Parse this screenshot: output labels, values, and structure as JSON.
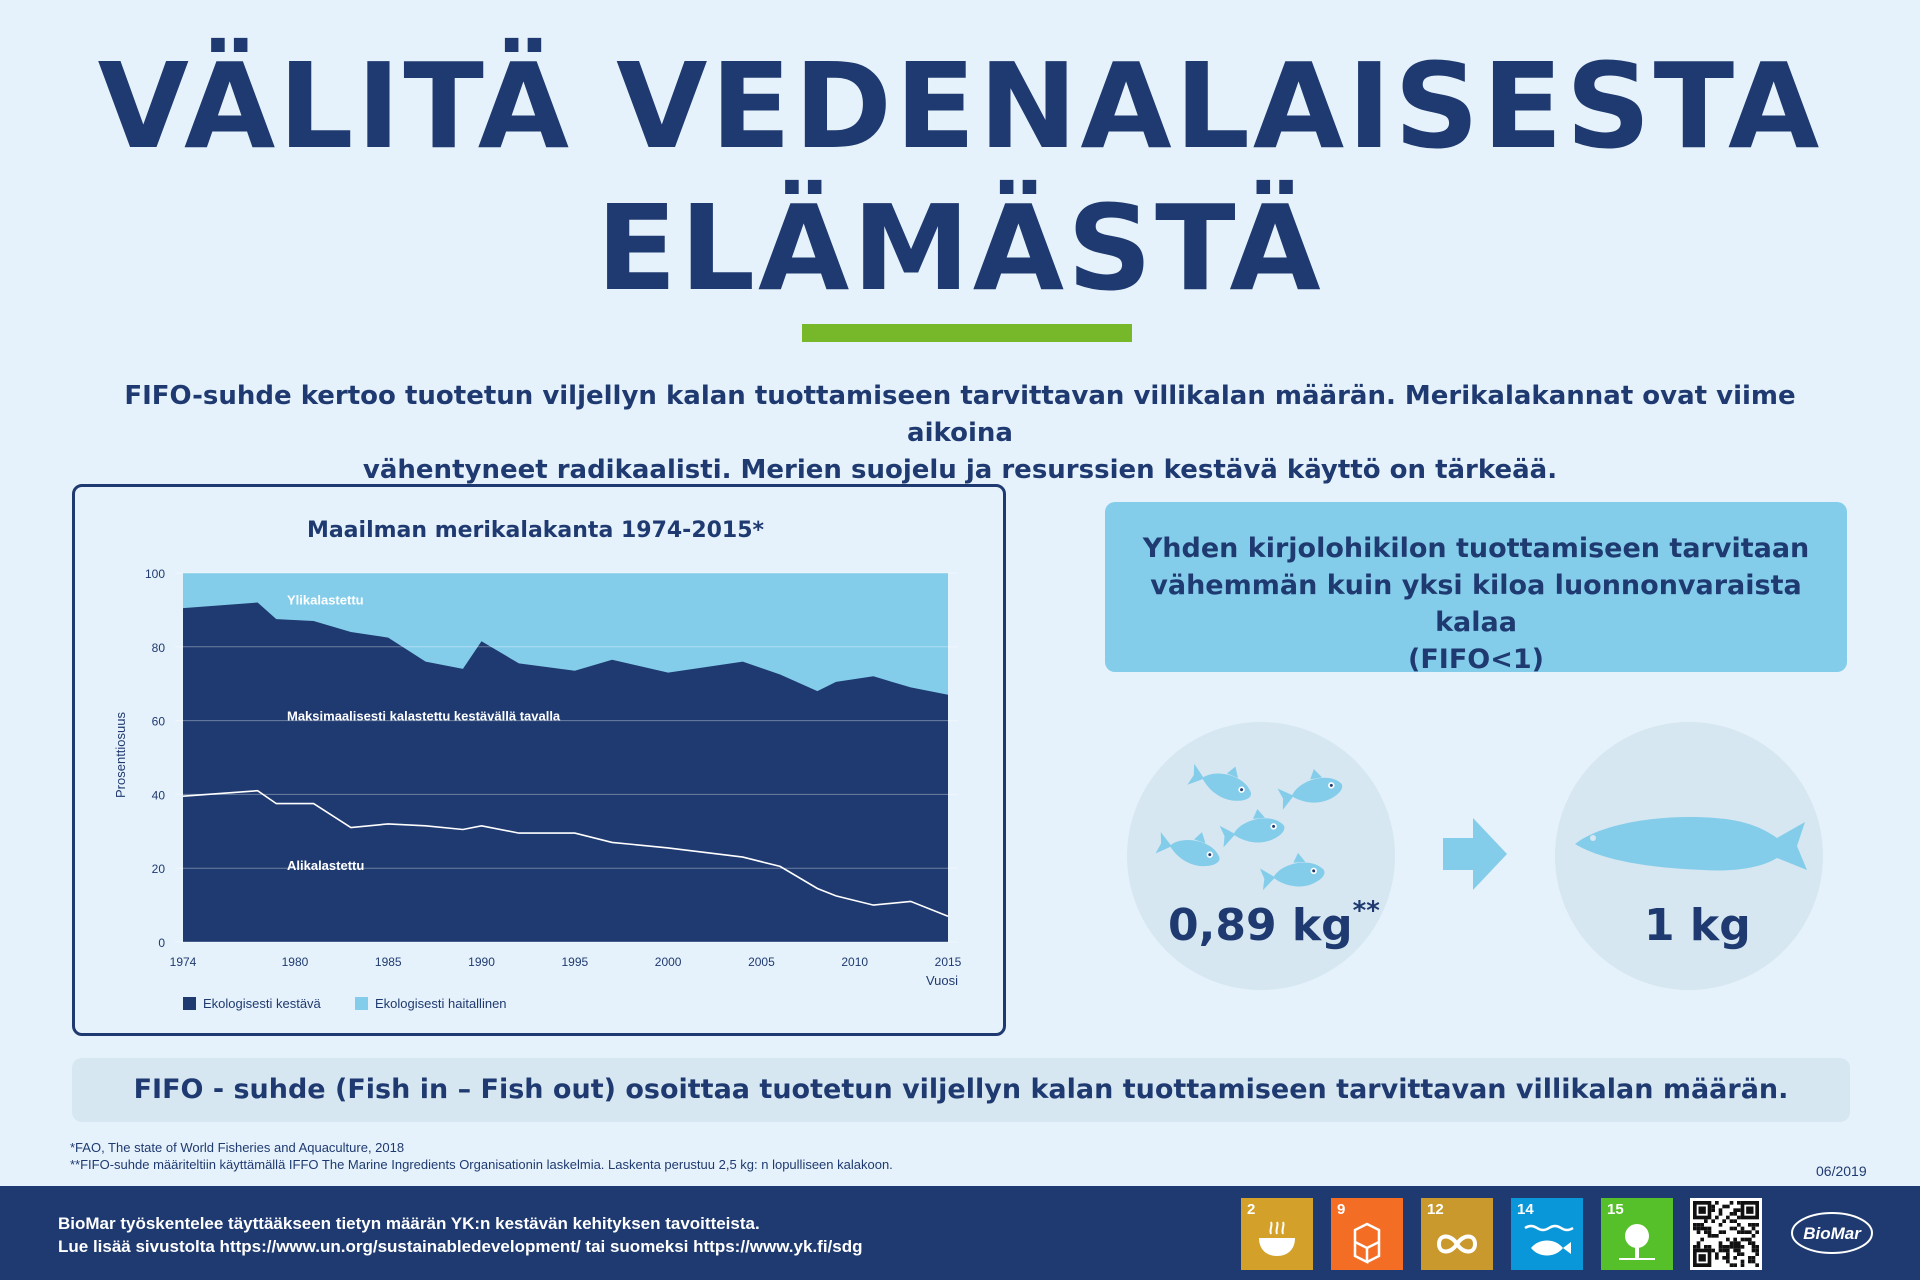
{
  "title_line1": "VÄLITÄ VEDENALAISESTA",
  "title_line2": "ELÄMÄSTÄ",
  "intro_line1": "FIFO-suhde kertoo tuotetun viljellyn kalan tuottamiseen tarvittavan villikalan määrän. Merikalakannat ovat viime aikoina",
  "intro_line2": "vähentyneet radikaalisti. Merien suojelu ja resurssien kestävä käyttö on tärkeää.",
  "info_box": {
    "line1": "Yhden kirjolohikilon tuottamiseen tarvitaan",
    "line2": "vähemmän kuin yksi kiloa luonnonvaraista kalaa",
    "line3": "(FIFO<1)"
  },
  "amount_left": "0,89 kg",
  "amount_left_sup": "**",
  "amount_right": "1 kg",
  "fifo_statement": "FIFO - suhde (Fish in – Fish out) osoittaa tuotetun viljellyn kalan tuottamiseen tarvittavan villikalan määrän.",
  "footnote1": "*FAO,  The state of World Fisheries and Aquaculture, 2018",
  "footnote2": "**FIFO-suhde määriteltiin käyttämällä IFFO The Marine Ingredients Organisationin laskelmia. Laskenta perustuu 2,5 kg: n lopulliseen kalakoon.",
  "date": "06/2019",
  "footer_line1": "BioMar työskentelee täyttääkseen tietyn määrän YK:n kestävän kehityksen tavoitteista.",
  "footer_line2": "Lue lisää sivustolta https://www.un.org/sustainabledevelopment/ tai suomeksi https://www.yk.fi/sdg",
  "sdg_numbers": [
    "2",
    "9",
    "12",
    "14",
    "15"
  ],
  "sdg_colors": [
    "#d3a029",
    "#f36d25",
    "#c9992d",
    "#0a97d9",
    "#56c02b"
  ],
  "logo_text": "BioMar",
  "colors": {
    "navy": "#1f3a70",
    "light_blue": "#84cdea",
    "green": "#77b82a",
    "background": "#e6f2fb"
  },
  "chart_data": {
    "type": "area",
    "title": "Maailman merikalakanta 1974-2015*",
    "ylabel": "Prosenttiosuus",
    "xlabel": "Vuosi",
    "ylim": [
      0,
      100
    ],
    "xlim": [
      1974,
      2015
    ],
    "y_ticks": [
      0,
      20,
      40,
      60,
      80,
      100
    ],
    "x_ticks": [
      1974,
      1980,
      1985,
      1990,
      1995,
      2000,
      2005,
      2010,
      2015
    ],
    "legend": [
      "Ekologisesti kestävä",
      "Ekologisesti haitallinen"
    ],
    "legend_colors": [
      "#1f3a70",
      "#84cdea"
    ],
    "region_labels": {
      "overfished": "Ylikalastettu",
      "max_sustainable": "Maksimaalisesti kalastettu kestävällä tavalla",
      "underfished": "Alikalastettu"
    },
    "x": [
      1974,
      1978,
      1979,
      1981,
      1983,
      1985,
      1987,
      1989,
      1990,
      1992,
      1995,
      1997,
      2000,
      2004,
      2006,
      2008,
      2009,
      2011,
      2013,
      2015
    ],
    "sustainable_total": [
      90.5,
      92,
      87.5,
      87,
      84,
      82.5,
      76,
      74,
      81.5,
      75.5,
      73.5,
      76.5,
      73,
      76,
      72.5,
      68,
      70.5,
      72,
      69,
      67
    ],
    "underfished": [
      39.5,
      41,
      37.5,
      37.5,
      31,
      32,
      31.5,
      30.5,
      31.5,
      29.5,
      29.5,
      27,
      25.5,
      23,
      20.5,
      14.5,
      12.5,
      10,
      11,
      7
    ],
    "overfished_remainder_to": 100
  }
}
